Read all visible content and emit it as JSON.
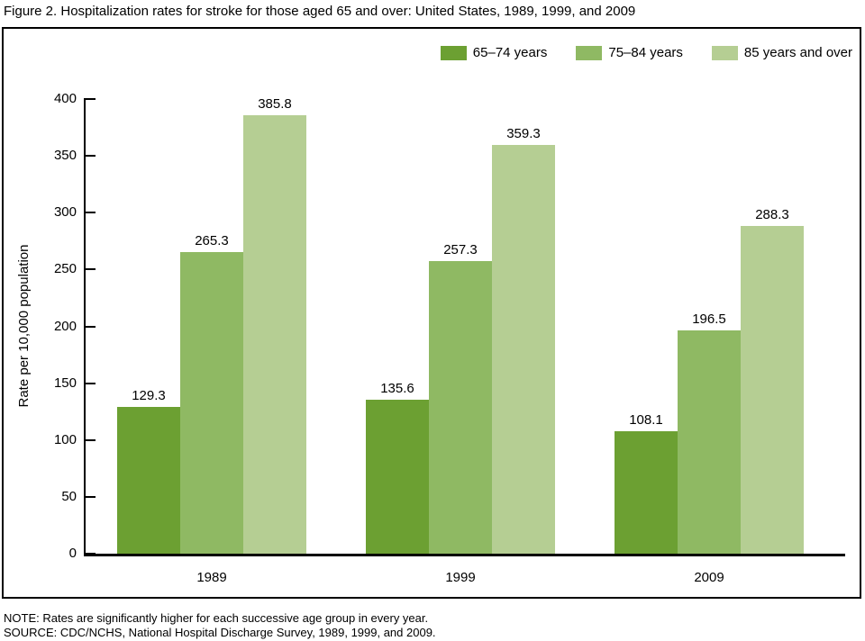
{
  "title": "Figure 2. Hospitalization rates for stroke for those aged 65 and over: United States, 1989, 1999, and 2009",
  "chart_data": {
    "type": "bar",
    "categories": [
      "1989",
      "1999",
      "2009"
    ],
    "series": [
      {
        "name": "65–74 years",
        "color": "#6CA032",
        "values": [
          129.3,
          135.6,
          108.1
        ]
      },
      {
        "name": "75–84 years",
        "color": "#8FB963",
        "values": [
          265.3,
          257.3,
          196.5
        ]
      },
      {
        "name": "85 years and over",
        "color": "#B5CE93",
        "values": [
          385.8,
          359.3,
          288.3
        ]
      }
    ],
    "ylabel": "Rate per 10,000 population",
    "ylim": [
      0,
      400
    ],
    "yticks": [
      0,
      50,
      100,
      150,
      200,
      250,
      300,
      350,
      400
    ],
    "grid": false,
    "legend_position": "top-right",
    "value_labels": true
  },
  "notes": {
    "note": "NOTE: Rates are significantly higher for each successive age group in every year.",
    "source": "SOURCE: CDC/NCHS, National Hospital Discharge Survey, 1989, 1999, and 2009."
  }
}
